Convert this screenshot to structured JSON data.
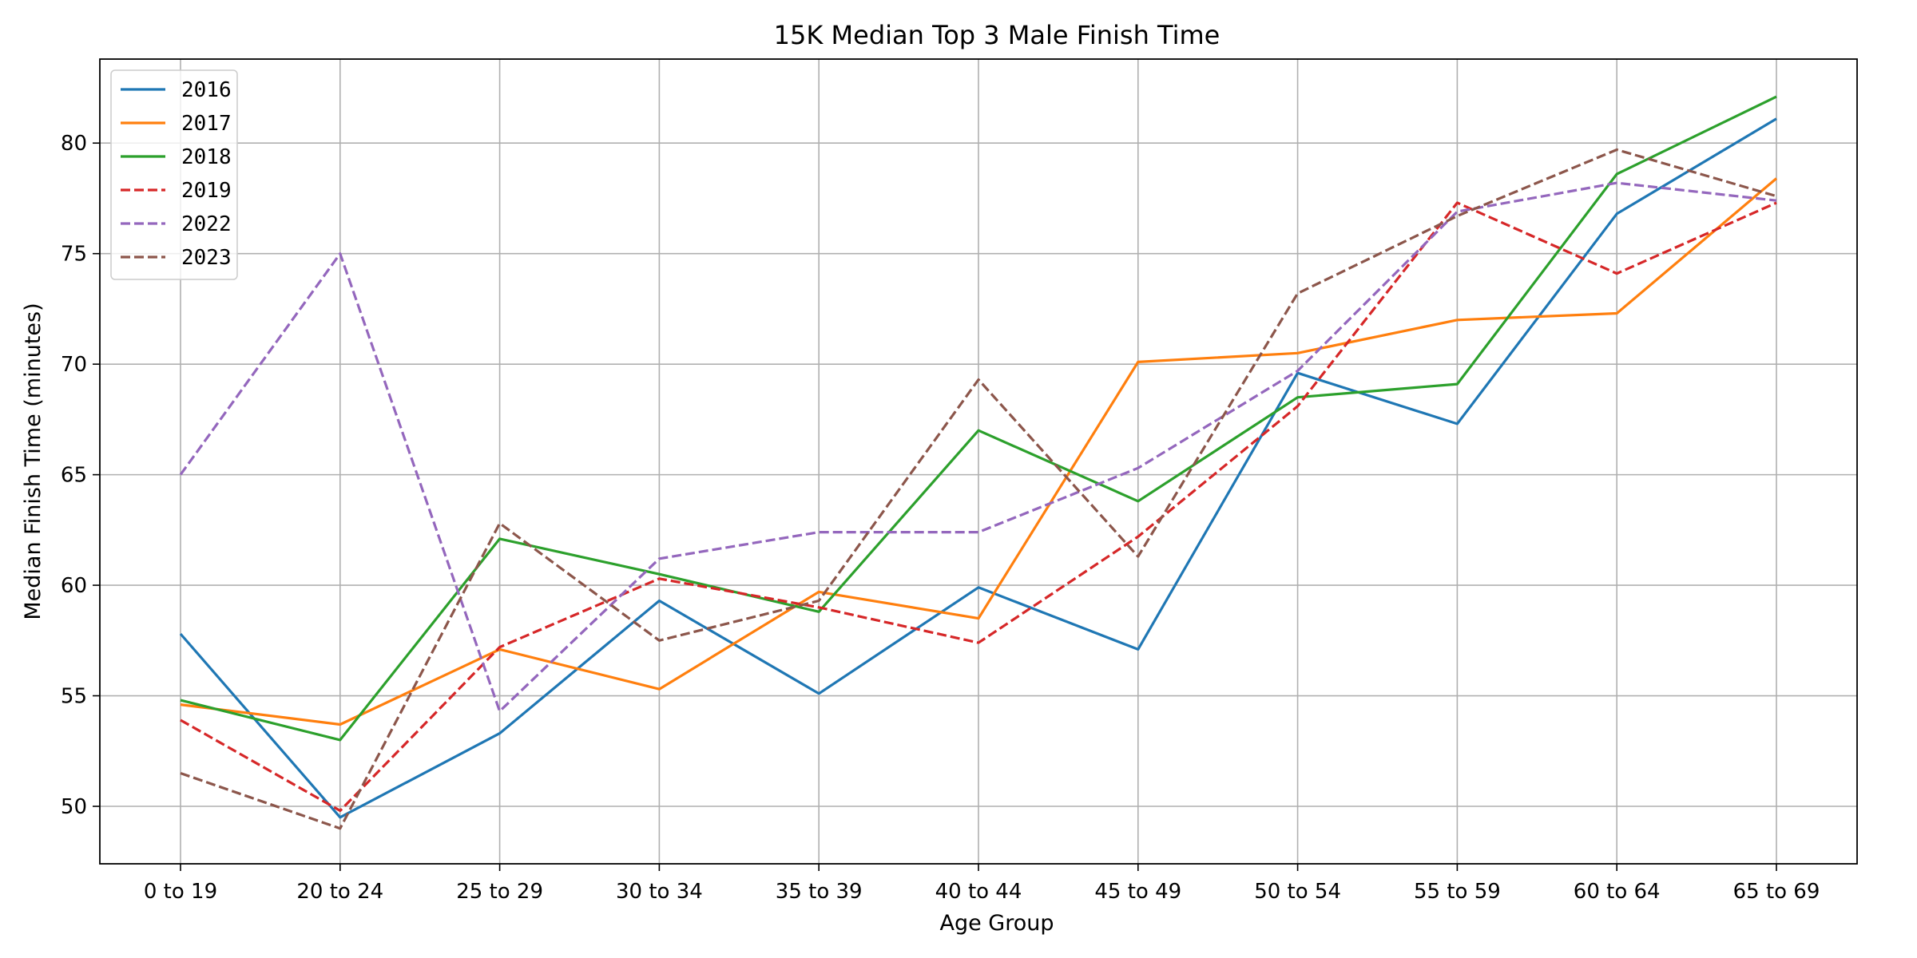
{
  "chart_data": {
    "type": "line",
    "title": "15K Median Top 3 Male Finish Time",
    "xlabel": "Age Group",
    "ylabel": "Median Finish Time (minutes)",
    "categories": [
      "0 to 19",
      "20 to 24",
      "25 to 29",
      "30 to 34",
      "35 to 39",
      "40 to 44",
      "45 to 49",
      "50 to 54",
      "55 to 59",
      "60 to 64",
      "65 to 69"
    ],
    "ylim": [
      47.4,
      83.8
    ],
    "yticks": [
      50,
      55,
      60,
      65,
      70,
      75,
      80
    ],
    "grid": true,
    "legend_position": "top-left",
    "series": [
      {
        "name": "2016",
        "color": "#1f77b4",
        "dash": "solid",
        "values": [
          57.8,
          49.5,
          53.3,
          59.3,
          55.1,
          59.9,
          57.1,
          69.6,
          67.3,
          76.8,
          81.1
        ]
      },
      {
        "name": "2017",
        "color": "#ff7f0e",
        "dash": "solid",
        "values": [
          54.6,
          53.7,
          57.1,
          55.3,
          59.7,
          58.5,
          70.1,
          70.5,
          72.0,
          72.3,
          78.4
        ]
      },
      {
        "name": "2018",
        "color": "#2ca02c",
        "dash": "solid",
        "values": [
          54.8,
          53.0,
          62.1,
          60.5,
          58.8,
          67.0,
          63.8,
          68.5,
          69.1,
          78.6,
          82.1
        ]
      },
      {
        "name": "2019",
        "color": "#d62728",
        "dash": "dashed",
        "values": [
          53.9,
          49.8,
          57.2,
          60.3,
          59.0,
          57.4,
          62.2,
          68.1,
          77.3,
          74.1,
          77.3
        ]
      },
      {
        "name": "2022",
        "color": "#9467bd",
        "dash": "dashed",
        "values": [
          65.0,
          75.0,
          54.3,
          61.2,
          62.4,
          62.4,
          65.3,
          69.7,
          76.9,
          78.2,
          77.4
        ]
      },
      {
        "name": "2023",
        "color": "#8c564b",
        "dash": "dashed",
        "values": [
          51.5,
          49.0,
          62.8,
          57.5,
          59.3,
          69.3,
          61.3,
          73.2,
          76.7,
          79.7,
          77.6
        ]
      }
    ]
  }
}
